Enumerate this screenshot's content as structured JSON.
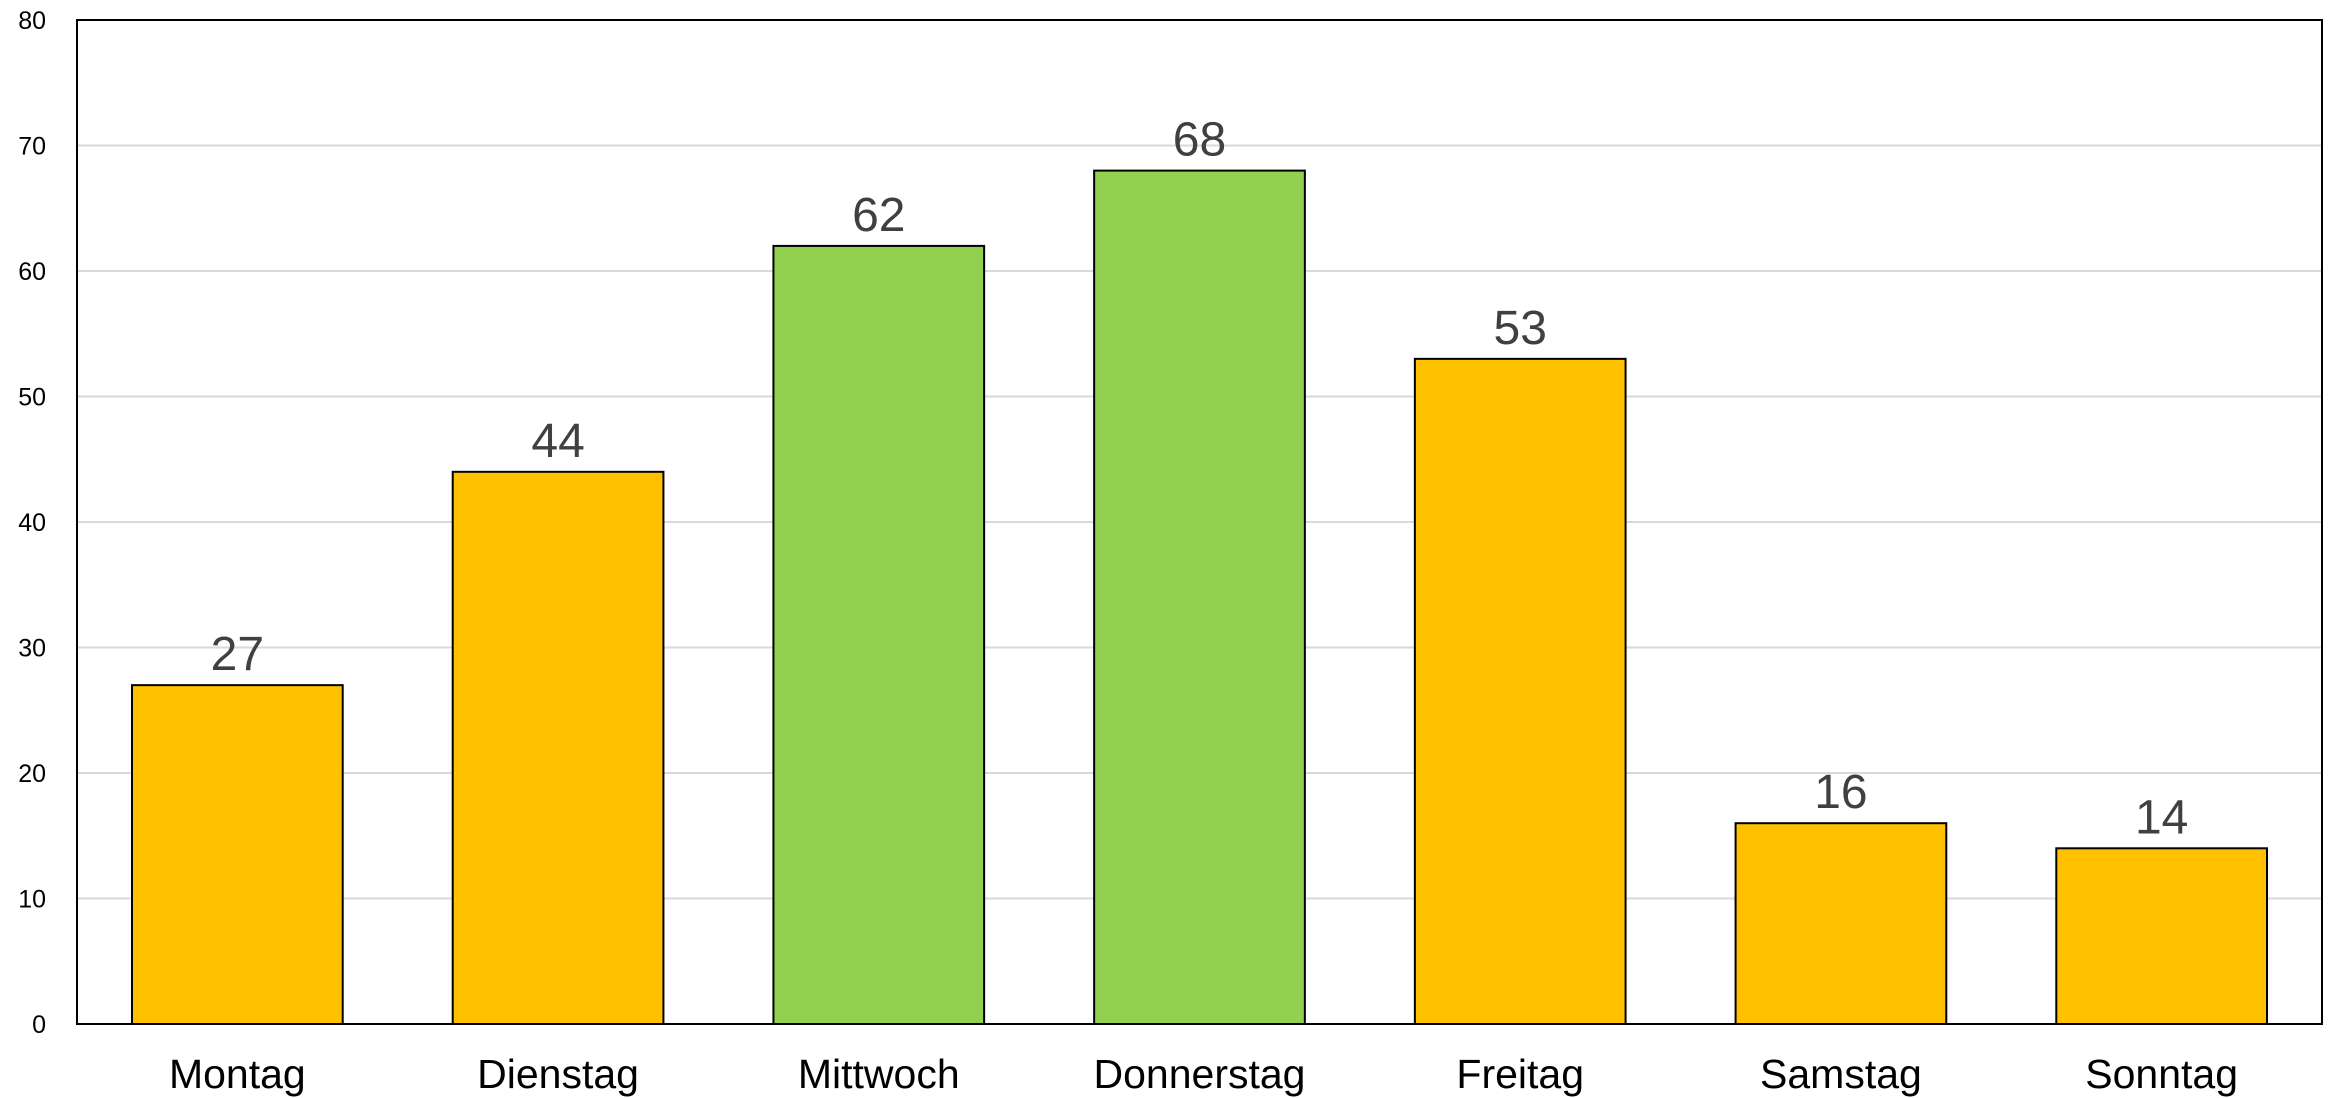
{
  "chart_data": {
    "type": "bar",
    "title": "",
    "xlabel": "",
    "ylabel": "",
    "categories": [
      "Montag",
      "Dienstag",
      "Mittwoch",
      "Donnerstag",
      "Freitag",
      "Samstag",
      "Sonntag"
    ],
    "values": [
      27,
      44,
      62,
      68,
      53,
      16,
      14
    ],
    "bar_colors": [
      "#FFC000",
      "#FFC000",
      "#92D050",
      "#92D050",
      "#FFC000",
      "#FFC000",
      "#FFC000"
    ],
    "ylim": [
      0,
      80
    ],
    "yticks": [
      0,
      10,
      20,
      30,
      40,
      50,
      60,
      70,
      80
    ],
    "ytick_labels": [
      "0",
      "10",
      "20",
      "30",
      "40",
      "50",
      "60",
      "70",
      "80"
    ],
    "data_labels": [
      "27",
      "44",
      "62",
      "68",
      "53",
      "16",
      "14"
    ],
    "grid": true,
    "legend": "none"
  },
  "colors": {
    "gridline": "#D9D9D9",
    "bar_outline": "#000000",
    "data_label": "#404040"
  }
}
